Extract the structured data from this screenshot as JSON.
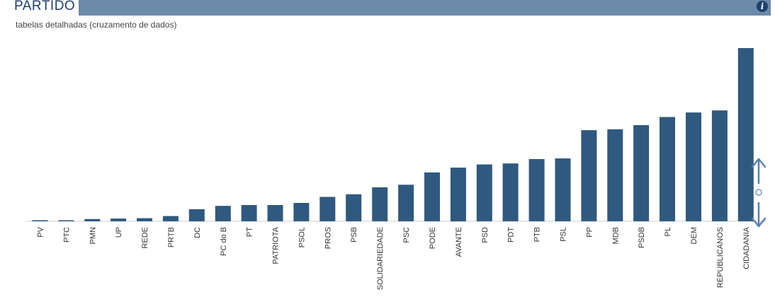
{
  "header": {
    "title": "PARTIDO",
    "subtitle": "tabelas detalhadas (cruzamento de dados)",
    "info_icon": "info-icon"
  },
  "colors": {
    "bar": "#30597f",
    "title_bar": "#6c8aa9",
    "title_text": "#1f3f6c",
    "axis": "#cccccc",
    "scroll_control": "#5b7fb3"
  },
  "scroll_control": {
    "icon": "vertical-resize-arrows-icon"
  },
  "chart_data": {
    "type": "bar",
    "categories": [
      "PV",
      "PTC",
      "PMN",
      "UP",
      "REDE",
      "PRTB",
      "DC",
      "PC do B",
      "PT",
      "PATRIOTA",
      "PSOL",
      "PROS",
      "PSB",
      "SOLIDARIEDADE",
      "PSC",
      "PODE",
      "AVANTE",
      "PSD",
      "PDT",
      "PTB",
      "PSL",
      "PP",
      "MDB",
      "PSDB",
      "PL",
      "DEM",
      "REPUBLICANOS",
      "CIDADANIA"
    ],
    "values": [
      0.6,
      0.6,
      1.3,
      1.6,
      1.8,
      3.0,
      7.0,
      8.9,
      9.4,
      9.4,
      10.6,
      14.1,
      15.6,
      19.6,
      21.1,
      28.2,
      31.0,
      32.8,
      33.4,
      35.9,
      36.3,
      52.6,
      53.1,
      55.5,
      60.2,
      62.8,
      64.0,
      100
    ],
    "title": "PARTIDO",
    "xlabel": "",
    "ylabel": "",
    "ylim": [
      0,
      100
    ],
    "grid": false,
    "legend": "none"
  }
}
